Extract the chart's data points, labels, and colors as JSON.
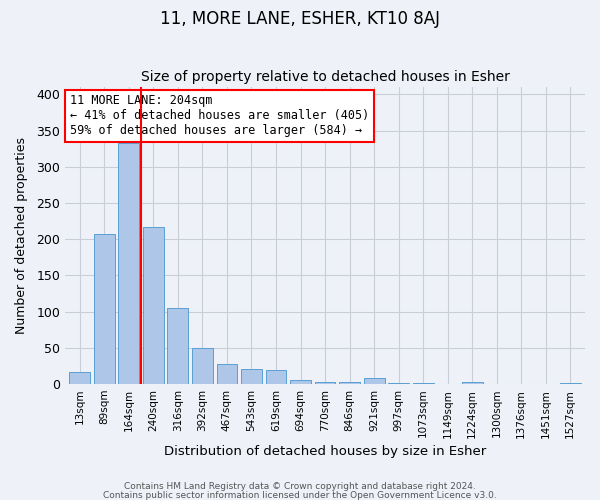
{
  "title": "11, MORE LANE, ESHER, KT10 8AJ",
  "subtitle": "Size of property relative to detached houses in Esher",
  "xlabel": "Distribution of detached houses by size in Esher",
  "ylabel": "Number of detached properties",
  "bin_labels": [
    "13sqm",
    "89sqm",
    "164sqm",
    "240sqm",
    "316sqm",
    "392sqm",
    "467sqm",
    "543sqm",
    "619sqm",
    "694sqm",
    "770sqm",
    "846sqm",
    "921sqm",
    "997sqm",
    "1073sqm",
    "1149sqm",
    "1224sqm",
    "1300sqm",
    "1376sqm",
    "1451sqm",
    "1527sqm"
  ],
  "bar_values": [
    16,
    207,
    333,
    217,
    105,
    49,
    27,
    21,
    19,
    6,
    2,
    2,
    8,
    1,
    1,
    0,
    2,
    0,
    0,
    0,
    1
  ],
  "bar_color": "#aec6e8",
  "bar_edge_color": "#5a9fd4",
  "vline_x_index": 2,
  "vline_color": "red",
  "annotation_title": "11 MORE LANE: 204sqm",
  "annotation_line1": "← 41% of detached houses are smaller (405)",
  "annotation_line2": "59% of detached houses are larger (584) →",
  "annotation_box_color": "white",
  "annotation_box_edge": "red",
  "ylim": [
    0,
    410
  ],
  "footer1": "Contains HM Land Registry data © Crown copyright and database right 2024.",
  "footer2": "Contains public sector information licensed under the Open Government Licence v3.0.",
  "background_color": "#eef2f8",
  "grid_color": "#c8cdd8",
  "title_fontsize": 12,
  "subtitle_fontsize": 10,
  "yticks": [
    0,
    50,
    100,
    150,
    200,
    250,
    300,
    350,
    400
  ]
}
